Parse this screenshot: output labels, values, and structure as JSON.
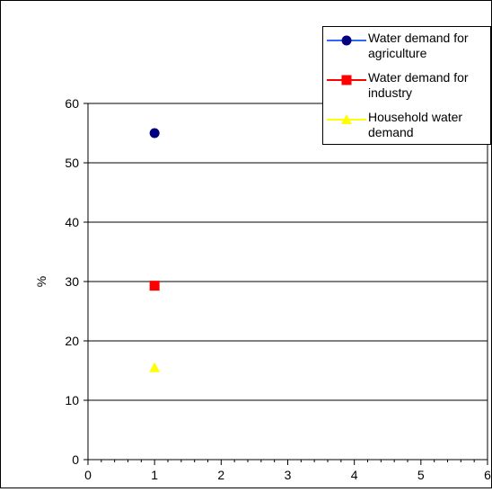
{
  "chart_data": {
    "type": "scatter",
    "title": "",
    "xlabel": "",
    "ylabel": "%",
    "xlim": [
      0,
      6
    ],
    "ylim": [
      0,
      60
    ],
    "xticks": [
      0,
      1,
      2,
      3,
      4,
      5,
      6
    ],
    "yticks": [
      0,
      10,
      20,
      30,
      40,
      50,
      60
    ],
    "grid": "horizontal",
    "legend_position": "top-right",
    "series": [
      {
        "name": "Water demand for agriculture",
        "x": [
          1
        ],
        "y": [
          55
        ],
        "marker": "circle",
        "color": "#000080",
        "line_color": "#3366ff"
      },
      {
        "name": "Water demand for industry",
        "x": [
          1
        ],
        "y": [
          29.3
        ],
        "marker": "square",
        "color": "#ff0000",
        "line_color": "#ff0000"
      },
      {
        "name": "Household water demand",
        "x": [
          1
        ],
        "y": [
          15.5
        ],
        "marker": "triangle",
        "color": "#ffff00",
        "line_color": "#ffff00"
      }
    ]
  }
}
